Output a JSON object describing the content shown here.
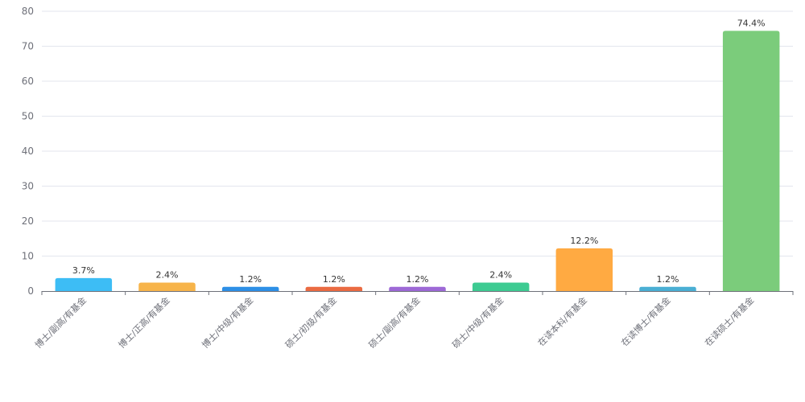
{
  "chart_data": {
    "type": "bar",
    "categories": [
      "博士/副高/有基金",
      "博士/正高/有基金",
      "博士/中级/有基金",
      "硕士/初级/有基金",
      "硕士/副高/有基金",
      "硕士/中级/有基金",
      "在读本科/有基金",
      "在读博士/有基金",
      "在读硕士/有基金"
    ],
    "values": [
      3.7,
      2.4,
      1.2,
      1.2,
      1.2,
      2.4,
      12.2,
      1.2,
      74.4
    ],
    "data_labels": [
      "3.7%",
      "2.4%",
      "1.2%",
      "1.2%",
      "1.2%",
      "2.4%",
      "12.2%",
      "1.2%",
      "74.4%"
    ],
    "colors": [
      "#3dbdf5",
      "#f7b44a",
      "#2d8fe6",
      "#ea6b42",
      "#9d69d6",
      "#3dcb92",
      "#ffaa42",
      "#4aafd4",
      "#7bcc7b"
    ],
    "yticks": [
      0,
      10,
      20,
      30,
      40,
      50,
      60,
      70,
      80
    ],
    "ylim": [
      0,
      80
    ],
    "grid": true,
    "title": "",
    "xlabel": "",
    "ylabel": ""
  }
}
